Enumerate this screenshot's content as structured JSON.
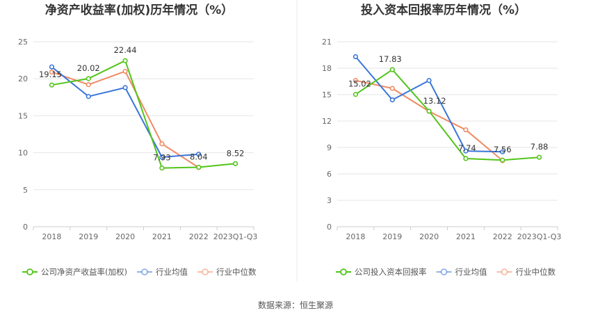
{
  "source": "数据来源：恒生聚源",
  "colors": {
    "company": "#52c41a",
    "avg": "#3a75d9",
    "median": "#f08a63",
    "grid": "#e6e6e6",
    "axis": "#cccccc"
  },
  "chart_data": [
    {
      "type": "line",
      "title": "净资产收益率(加权)历年情况（%）",
      "categories": [
        "2018",
        "2019",
        "2020",
        "2021",
        "2022",
        "2023Q1-Q3"
      ],
      "y_ticks": [
        "0",
        "5",
        "10",
        "15",
        "20",
        "25"
      ],
      "ylim": [
        0,
        25
      ],
      "legend_position": "bottom-left",
      "series": [
        {
          "name": "公司净资产收益率(加权)",
          "color_key": "company",
          "values": [
            19.15,
            20.02,
            22.44,
            7.93,
            8.04,
            8.52
          ],
          "labels": [
            "19.15",
            "20.02",
            "22.44",
            "7.93",
            "8.04",
            "8.52"
          ]
        },
        {
          "name": "行业均值",
          "color_key": "avg",
          "values": [
            21.6,
            17.6,
            18.8,
            9.4,
            9.8,
            null
          ]
        },
        {
          "name": "行业中位数",
          "color_key": "median",
          "values": [
            20.9,
            19.2,
            21.0,
            11.2,
            8.0,
            null
          ]
        }
      ]
    },
    {
      "type": "line",
      "title": "投入资本回报率历年情况（%）",
      "categories": [
        "2018",
        "2019",
        "2020",
        "2021",
        "2022",
        "2023Q1-Q3"
      ],
      "y_ticks": [
        "0",
        "3",
        "6",
        "9",
        "12",
        "15",
        "18",
        "21"
      ],
      "ylim": [
        0,
        21
      ],
      "legend_position": "bottom-left",
      "series": [
        {
          "name": "公司投入资本回报率",
          "color_key": "company",
          "values": [
            15.02,
            17.83,
            13.12,
            7.74,
            7.56,
            7.88
          ],
          "labels": [
            "15.02",
            "17.83",
            "13.12",
            "7.74",
            "7.56",
            "7.88"
          ]
        },
        {
          "name": "行业均值",
          "color_key": "avg",
          "values": [
            19.3,
            14.4,
            16.6,
            8.6,
            8.5,
            null
          ]
        },
        {
          "name": "行业中位数",
          "color_key": "median",
          "values": [
            16.6,
            15.7,
            13.1,
            11.0,
            7.5,
            null
          ]
        }
      ]
    }
  ]
}
